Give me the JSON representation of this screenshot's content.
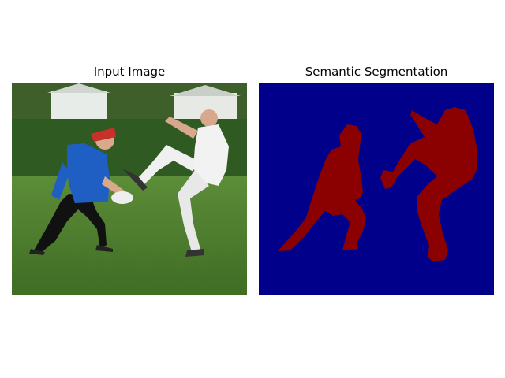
{
  "figure": {
    "left_panel": {
      "title": "Input Image"
    },
    "right_panel": {
      "title": "Semantic Segmentation"
    }
  },
  "colors": {
    "background_class": "#00008b",
    "person_class": "#8b0000",
    "grass": "#4f7f2f",
    "hedge": "#2f5a22",
    "jersey_blue": "#1f5fc4",
    "cap_red": "#c8302a",
    "shirt_white": "#f2f2f2"
  }
}
